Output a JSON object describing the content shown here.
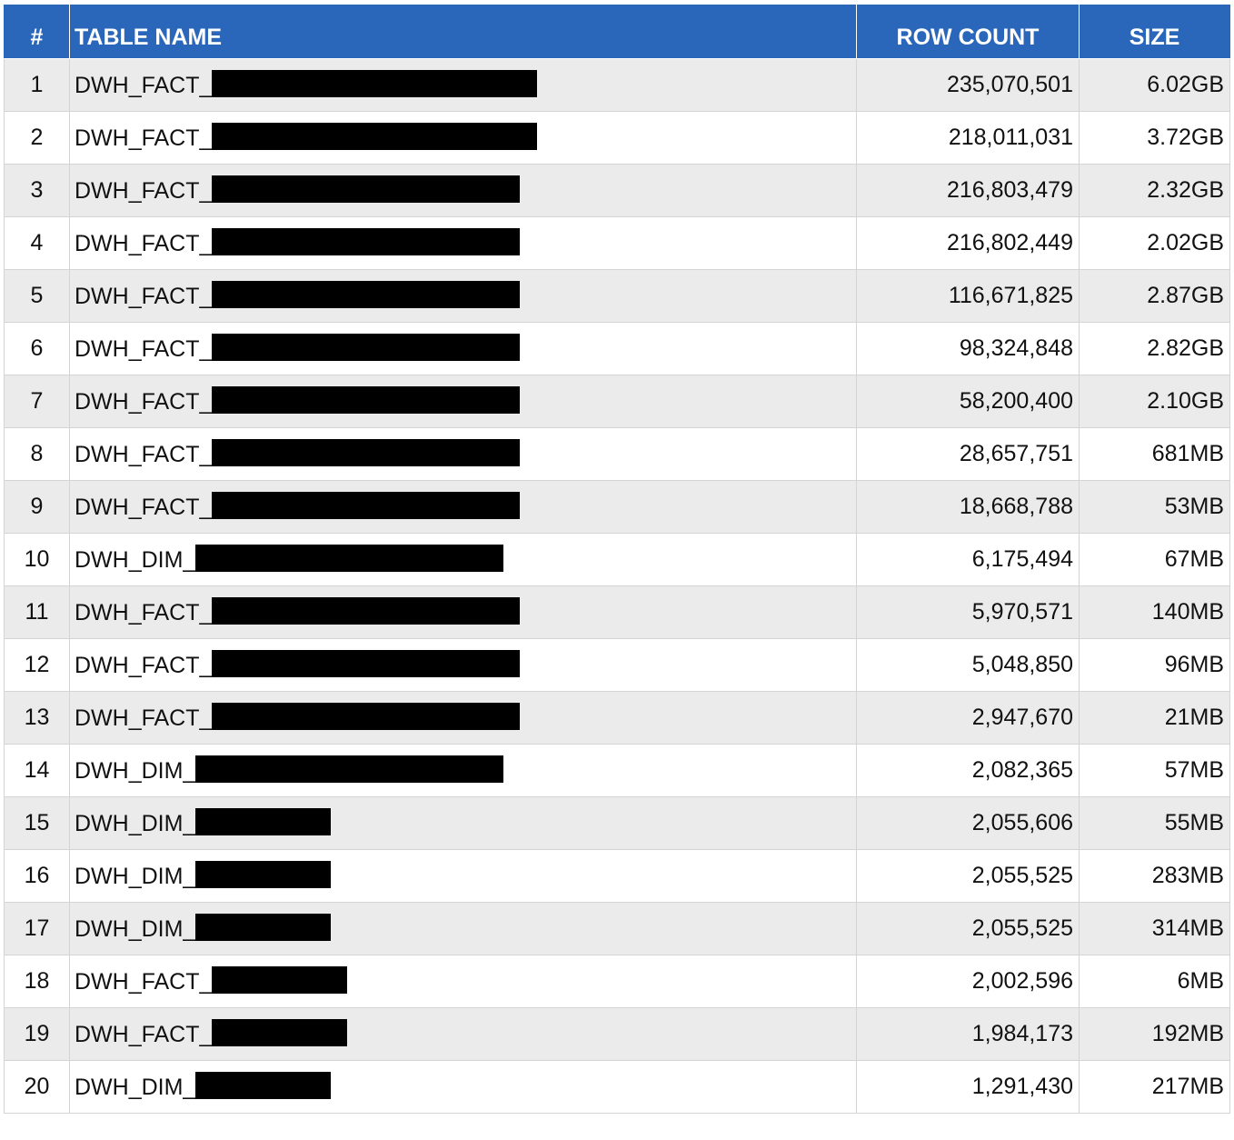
{
  "table": {
    "headers": {
      "num": "#",
      "name": "TABLE NAME",
      "rows": "ROW COUNT",
      "size": "SIZE"
    },
    "colors": {
      "header_bg": "#2a67bb",
      "header_text": "#ffffff",
      "row_alt": "#ebebeb",
      "redaction": "#000000"
    },
    "rows": [
      {
        "num": "1",
        "prefix": "DWH_FACT_",
        "redacted": true,
        "row_count": "235,070,501",
        "size": "6.02GB"
      },
      {
        "num": "2",
        "prefix": "DWH_FACT_",
        "redacted": true,
        "row_count": "218,011,031",
        "size": "3.72GB"
      },
      {
        "num": "3",
        "prefix": "DWH_FACT_",
        "redacted": true,
        "row_count": "216,803,479",
        "size": "2.32GB"
      },
      {
        "num": "4",
        "prefix": "DWH_FACT_",
        "redacted": true,
        "row_count": "216,802,449",
        "size": "2.02GB"
      },
      {
        "num": "5",
        "prefix": "DWH_FACT_",
        "redacted": true,
        "row_count": "116,671,825",
        "size": "2.87GB"
      },
      {
        "num": "6",
        "prefix": "DWH_FACT_",
        "redacted": true,
        "row_count": "98,324,848",
        "size": "2.82GB"
      },
      {
        "num": "7",
        "prefix": "DWH_FACT_",
        "redacted": true,
        "row_count": "58,200,400",
        "size": "2.10GB"
      },
      {
        "num": "8",
        "prefix": "DWH_FACT_",
        "redacted": true,
        "row_count": "28,657,751",
        "size": "681MB"
      },
      {
        "num": "9",
        "prefix": "DWH_FACT_",
        "redacted": true,
        "row_count": "18,668,788",
        "size": "53MB"
      },
      {
        "num": "10",
        "prefix": "DWH_DIM_",
        "redacted": true,
        "row_count": "6,175,494",
        "size": "67MB"
      },
      {
        "num": "11",
        "prefix": "DWH_FACT_",
        "redacted": true,
        "row_count": "5,970,571",
        "size": "140MB"
      },
      {
        "num": "12",
        "prefix": "DWH_FACT_",
        "redacted": true,
        "row_count": "5,048,850",
        "size": "96MB"
      },
      {
        "num": "13",
        "prefix": "DWH_FACT_",
        "redacted": true,
        "row_count": "2,947,670",
        "size": "21MB"
      },
      {
        "num": "14",
        "prefix": "DWH_DIM_",
        "redacted": true,
        "row_count": "2,082,365",
        "size": "57MB"
      },
      {
        "num": "15",
        "prefix": "DWH_DIM_",
        "redacted": true,
        "row_count": "2,055,606",
        "size": "55MB"
      },
      {
        "num": "16",
        "prefix": "DWH_DIM_",
        "redacted": true,
        "row_count": "2,055,525",
        "size": "283MB"
      },
      {
        "num": "17",
        "prefix": "DWH_DIM_",
        "redacted": true,
        "row_count": "2,055,525",
        "size": "314MB"
      },
      {
        "num": "18",
        "prefix": "DWH_FACT_",
        "redacted": true,
        "row_count": "2,002,596",
        "size": "6MB"
      },
      {
        "num": "19",
        "prefix": "DWH_FACT_",
        "redacted": true,
        "row_count": "1,984,173",
        "size": "192MB"
      },
      {
        "num": "20",
        "prefix": "DWH_DIM_",
        "redacted": true,
        "row_count": "1,291,430",
        "size": "217MB"
      }
    ]
  }
}
